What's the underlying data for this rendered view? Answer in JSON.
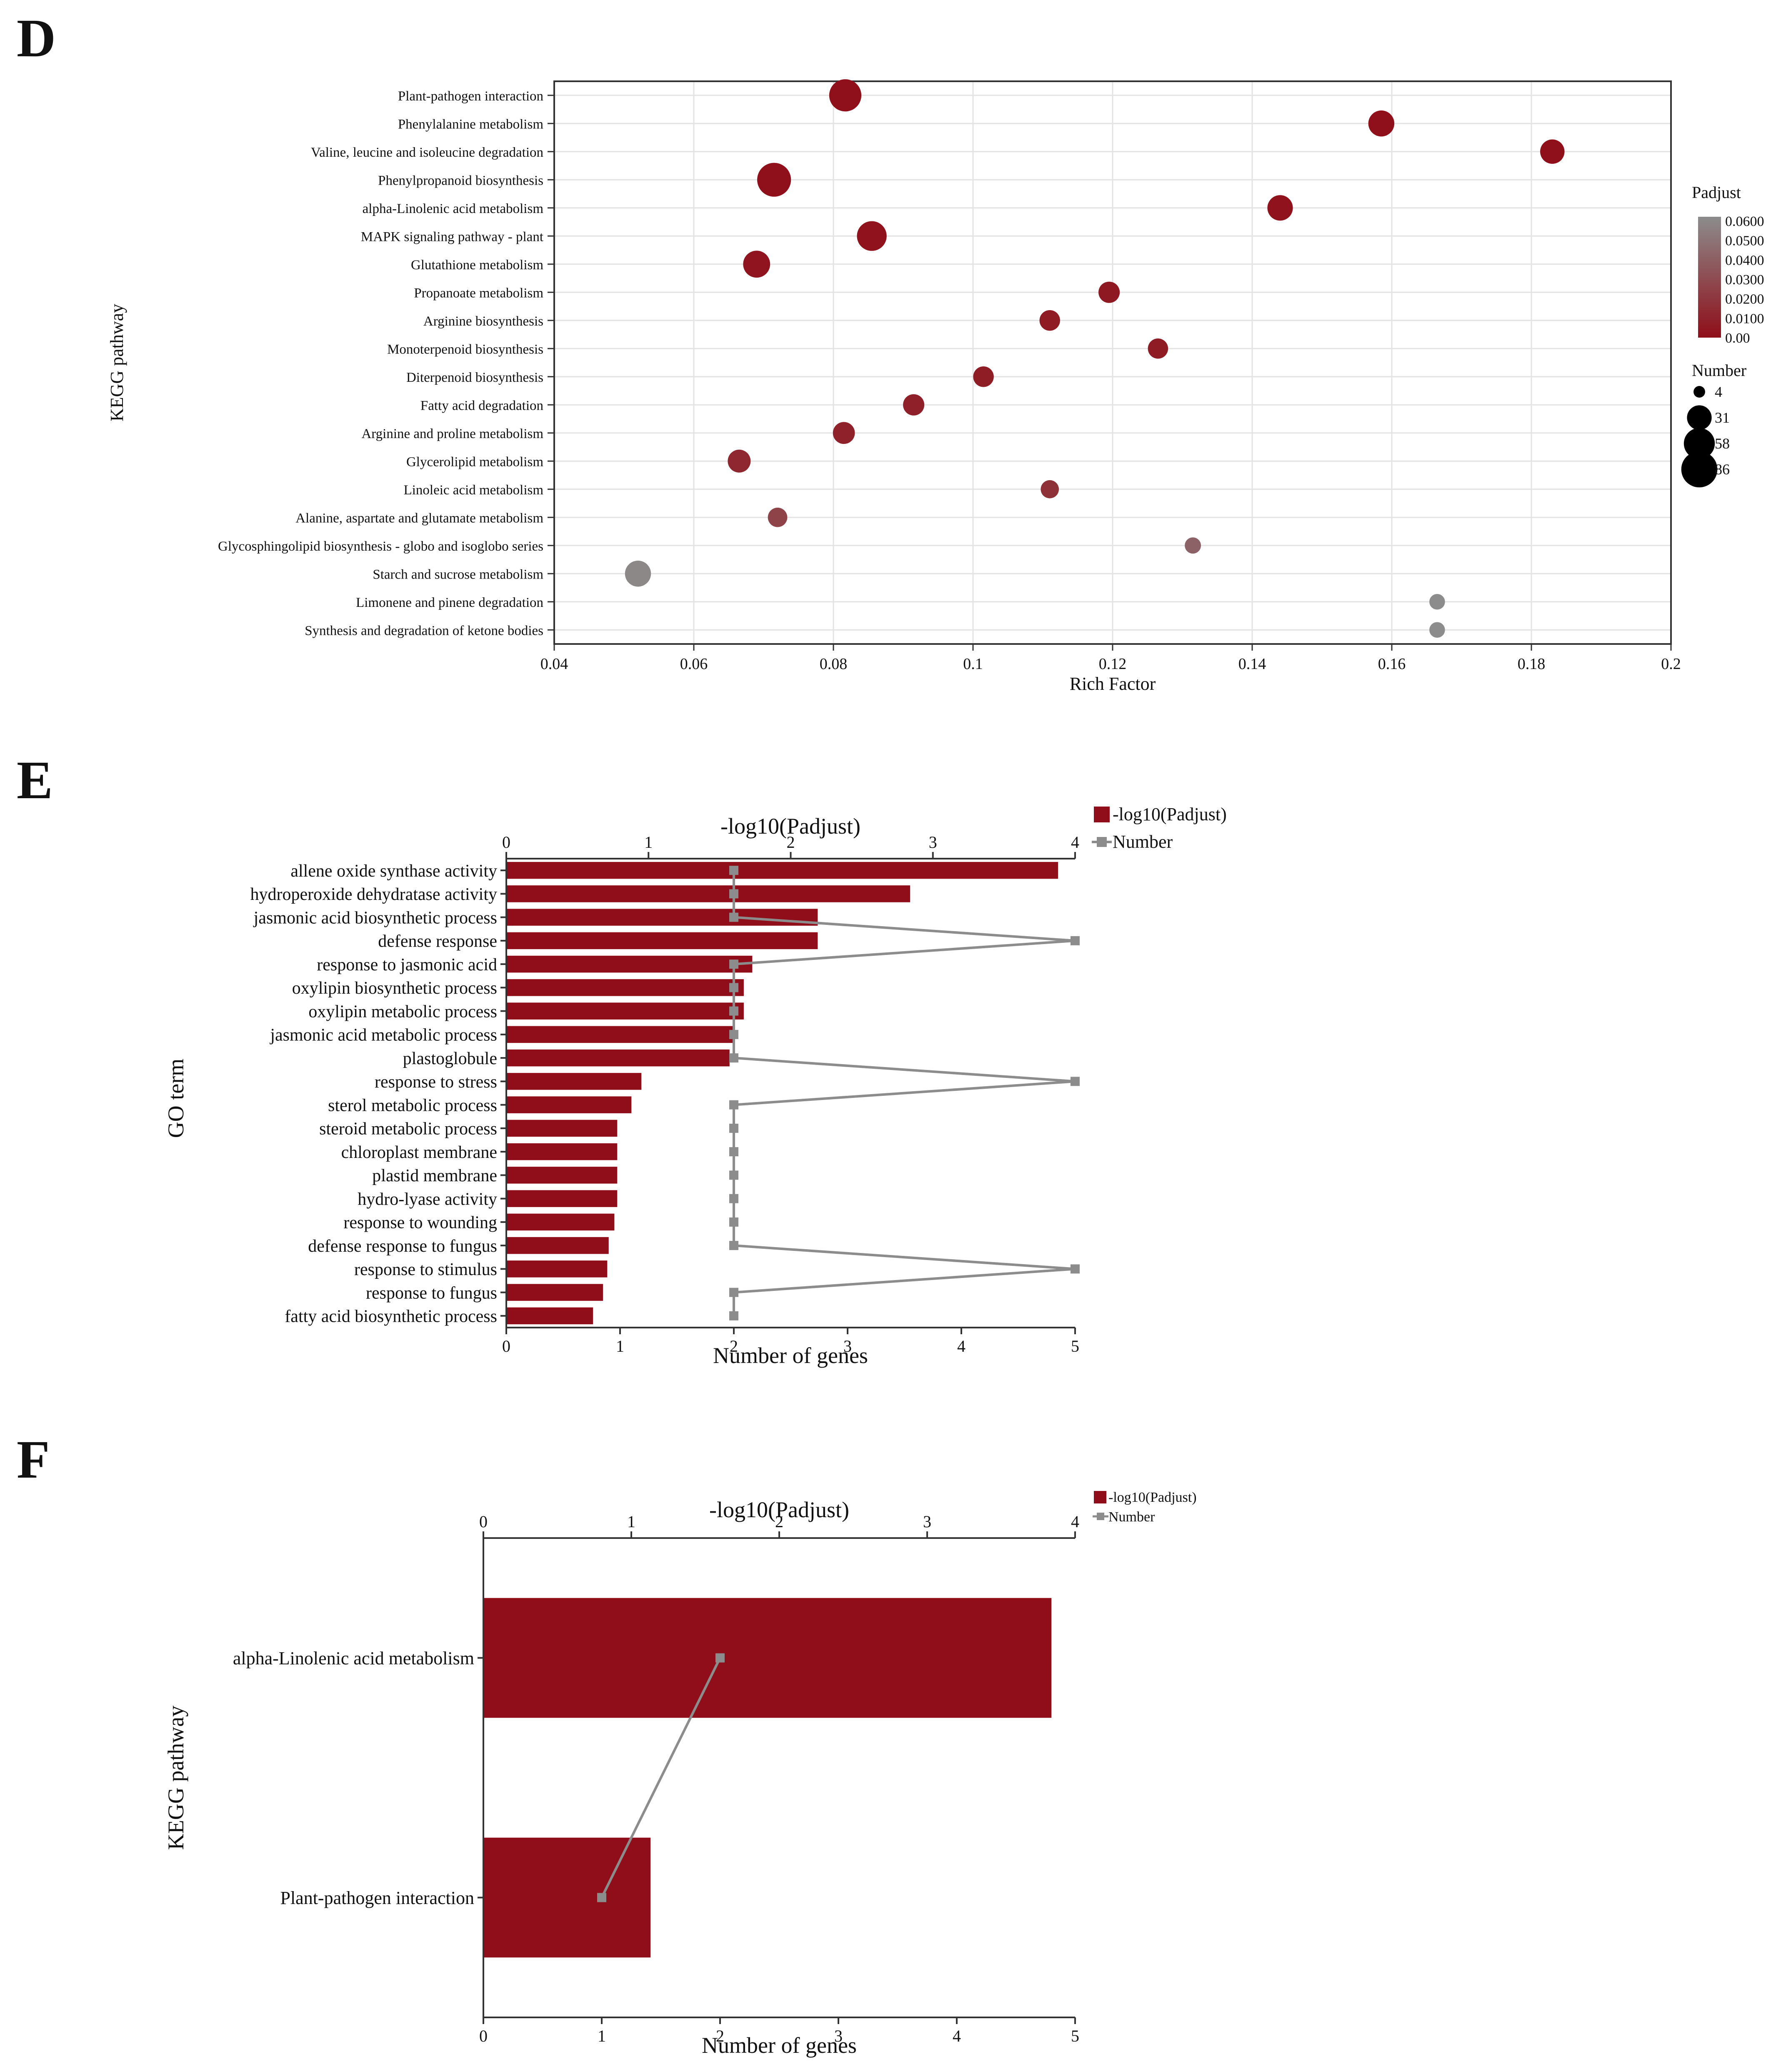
{
  "panels": {
    "d": "D",
    "e": "E",
    "f": "F"
  },
  "chart_data": [
    {
      "type": "scatter",
      "panel": "D",
      "xlabel": "Rich Factor",
      "ylabel": "KEGG pathway",
      "xlim": [
        0.04,
        0.2
      ],
      "xticks": [
        0.04,
        0.06,
        0.08,
        0.1,
        0.12,
        0.14,
        0.16,
        0.18,
        0.2
      ],
      "xtick_labels": [
        "0.04",
        "0.06",
        "0.08",
        "0.1",
        "0.12",
        "0.14",
        "0.16",
        "0.18",
        "0.2"
      ],
      "grid": true,
      "categories": [
        "Plant-pathogen interaction",
        "Phenylalanine metabolism",
        "Valine, leucine and isoleucine degradation",
        "Phenylpropanoid biosynthesis",
        "alpha-Linolenic acid metabolism",
        "MAPK signaling pathway - plant",
        "Glutathione metabolism",
        "Propanoate metabolism",
        "Arginine biosynthesis",
        "Monoterpenoid biosynthesis",
        "Diterpenoid biosynthesis",
        "Fatty acid degradation",
        "Arginine and proline metabolism",
        "Glycerolipid metabolism",
        "Linoleic acid metabolism",
        "Alanine, aspartate and glutamate metabolism",
        "Glycosphingolipid biosynthesis - globo and isoglobo series",
        "Starch and sucrose metabolism",
        "Limonene and pinene degradation",
        "Synthesis and degradation of ketone bodies"
      ],
      "x": [
        0.0817,
        0.1585,
        0.183,
        0.0715,
        0.144,
        0.0855,
        0.069,
        0.1195,
        0.111,
        0.1265,
        0.1015,
        0.0915,
        0.0815,
        0.0665,
        0.111,
        0.072,
        0.1315,
        0.052,
        0.1665,
        0.1665
      ],
      "number": [
        64,
        36,
        30,
        73,
        34,
        52,
        40,
        20,
        18,
        17,
        18,
        20,
        22,
        25,
        12,
        15,
        8,
        36,
        7,
        7
      ],
      "padjust": [
        0.001,
        0.001,
        0.001,
        0.001,
        0.002,
        0.002,
        0.003,
        0.005,
        0.006,
        0.006,
        0.007,
        0.008,
        0.009,
        0.012,
        0.016,
        0.025,
        0.04,
        0.058,
        0.06,
        0.06
      ],
      "legend": {
        "color_title": "Padjust",
        "color_labels": [
          "0.0600",
          "0.0500",
          "0.0400",
          "0.0300",
          "0.0200",
          "0.0100",
          "0.00"
        ],
        "color_range": [
          "#8f0e19",
          "#8c8c8c"
        ],
        "size_title": "Number",
        "size_labels": [
          "4",
          "31",
          "58",
          "86"
        ],
        "size_values": [
          4,
          31,
          58,
          86
        ],
        "position": "right"
      }
    },
    {
      "type": "bar",
      "panel": "E",
      "orientation": "horizontal",
      "ylabel": "GO term",
      "top_axis_label": "-log10(Padjust)",
      "top_xlim": [
        0,
        4
      ],
      "top_ticks": [
        "0",
        "1",
        "2",
        "3",
        "4"
      ],
      "bottom_axis_label": "Number of genes",
      "bottom_xlim": [
        0,
        5
      ],
      "bottom_ticks": [
        "0",
        "1",
        "2",
        "3",
        "4",
        "5"
      ],
      "categories": [
        "allene oxide synthase activity",
        "hydroperoxide dehydratase activity",
        "jasmonic acid biosynthetic process",
        "defense response",
        "response to jasmonic acid",
        "oxylipin biosynthetic process",
        "oxylipin metabolic process",
        "jasmonic acid metabolic process",
        "plastoglobule",
        "response to stress",
        "sterol metabolic process",
        "steroid metabolic process",
        "chloroplast membrane",
        "plastid membrane",
        "hydro-lyase activity",
        "response to wounding",
        "defense response to fungus",
        "response to stimulus",
        "response to fungus",
        "fatty acid biosynthetic process"
      ],
      "series": [
        {
          "name": "-log10(Padjust)",
          "color": "#8f0e19",
          "kind": "bar",
          "values": [
            3.88,
            2.84,
            2.19,
            2.19,
            1.73,
            1.67,
            1.67,
            1.6,
            1.57,
            0.95,
            0.88,
            0.78,
            0.78,
            0.78,
            0.78,
            0.76,
            0.72,
            0.71,
            0.68,
            0.61
          ]
        },
        {
          "name": "Number",
          "color": "#8c8c8c",
          "kind": "line",
          "values": [
            2,
            2,
            2,
            5,
            2,
            2,
            2,
            2,
            2,
            5,
            2,
            2,
            2,
            2,
            2,
            2,
            2,
            5,
            2,
            2
          ]
        }
      ],
      "legend": {
        "labels": [
          "-log10(Padjust)",
          "Number"
        ],
        "position": "top-right"
      }
    },
    {
      "type": "bar",
      "panel": "F",
      "orientation": "horizontal",
      "ylabel": "KEGG pathway",
      "top_axis_label": "-log10(Padjust)",
      "top_xlim": [
        0,
        4
      ],
      "top_ticks": [
        "0",
        "1",
        "2",
        "3",
        "4"
      ],
      "bottom_axis_label": "Number of genes",
      "bottom_xlim": [
        0,
        5
      ],
      "bottom_ticks": [
        "0",
        "1",
        "2",
        "3",
        "4",
        "5"
      ],
      "categories": [
        "alpha-Linolenic acid metabolism",
        "Plant-pathogen interaction"
      ],
      "series": [
        {
          "name": "-log10(Padjust)",
          "color": "#8f0e19",
          "kind": "bar",
          "values": [
            3.84,
            1.13
          ]
        },
        {
          "name": "Number",
          "color": "#8c8c8c",
          "kind": "line",
          "values": [
            2,
            1
          ]
        }
      ],
      "legend": {
        "labels": [
          "-log10(Padjust)",
          "Number"
        ],
        "position": "top-right"
      }
    }
  ]
}
